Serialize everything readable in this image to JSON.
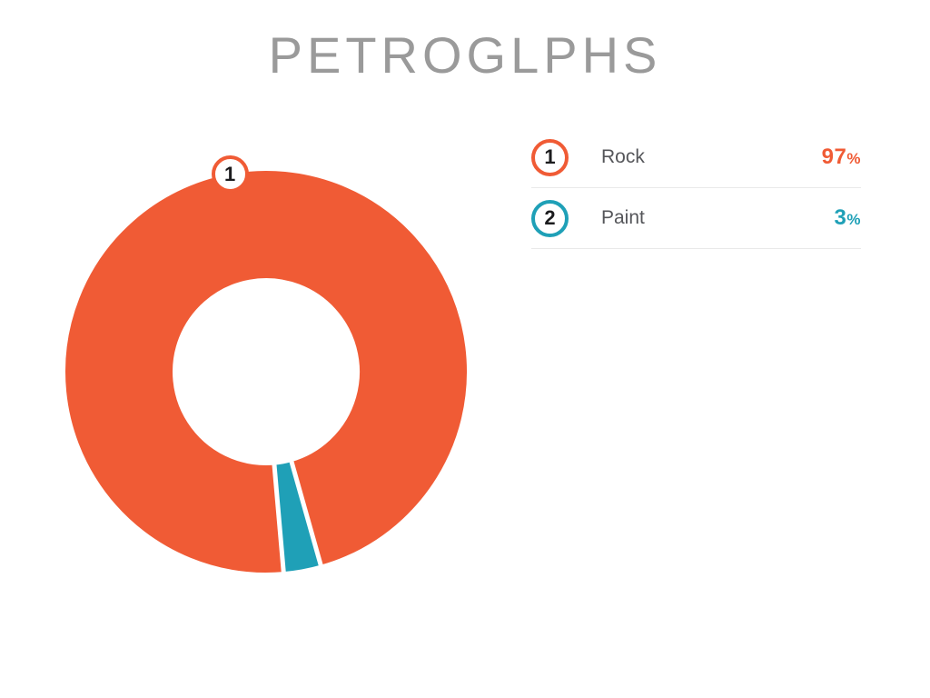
{
  "title": "PETROGLPHS",
  "legend": {
    "items": [
      {
        "index": "1",
        "label": "Rock",
        "value": "97",
        "unit": "%",
        "percent": "97%",
        "color": "#f05b35"
      },
      {
        "index": "2",
        "label": "Paint",
        "value": "3",
        "unit": "%",
        "percent": "3%",
        "color": "#1fa0b7"
      }
    ]
  },
  "chart_data": {
    "type": "pie",
    "subtype": "donut",
    "title": "PETROGLPHS",
    "labels": [
      "Rock",
      "Paint"
    ],
    "values": [
      97,
      3
    ],
    "unit": "%",
    "colors": [
      "#f05b35",
      "#1fa0b7"
    ],
    "rotation_deg": 175,
    "direction": "clockwise",
    "callout": {
      "slice": 0,
      "label": "1"
    },
    "legend_position": "right",
    "hole_ratio": 0.47
  },
  "colors": {
    "background": "#ffffff",
    "orange": "#f05b35",
    "teal": "#1fa0b7",
    "title_gray": "#9a9a9a",
    "label_gray": "#55565a",
    "number_dark": "#1c1c1e",
    "divider": "#e9e9e9"
  }
}
